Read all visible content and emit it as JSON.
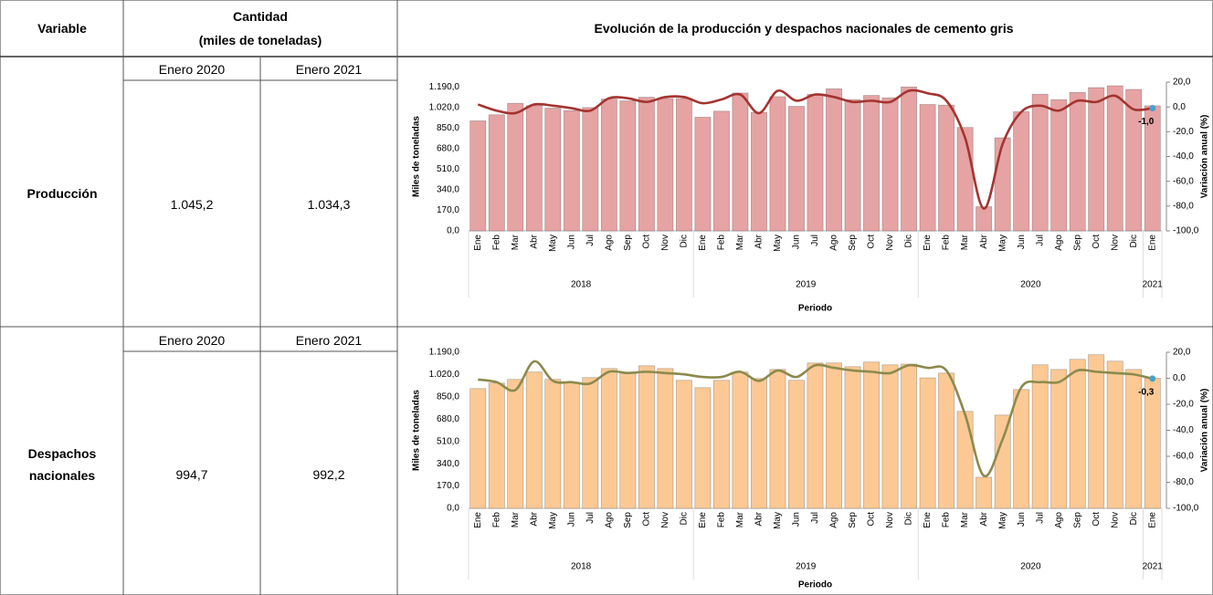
{
  "table": {
    "headers": {
      "variable": "Variable",
      "cantidad": "Cantidad",
      "unit": "(miles de toneladas)",
      "chart": "Evolución de la producción y despachos nacionales de cemento gris"
    },
    "rows": [
      {
        "variable": "Producción",
        "periods": [
          "Enero 2020",
          "Enero 2021"
        ],
        "values": [
          "1.045,2",
          "1.034,3"
        ]
      },
      {
        "variable": "Despachos nacionales",
        "periods": [
          "Enero 2020",
          "Enero 2021"
        ],
        "values": [
          "994,7",
          "992,2"
        ]
      }
    ]
  },
  "chart_data": [
    {
      "type": "bar",
      "categories": [
        "Ene",
        "Feb",
        "Mar",
        "Abr",
        "May",
        "Jun",
        "Jul",
        "Ago",
        "Sep",
        "Oct",
        "Nov",
        "Dic",
        "Ene",
        "Feb",
        "Mar",
        "Abr",
        "May",
        "Jun",
        "Jul",
        "Ago",
        "Sep",
        "Oct",
        "Nov",
        "Dic",
        "Ene",
        "Feb",
        "Mar",
        "Abr",
        "May",
        "Jun",
        "Jul",
        "Ago",
        "Sep",
        "Oct",
        "Nov",
        "Dic",
        "Ene"
      ],
      "year_labels": [
        "2018",
        "2019",
        "2020",
        "2021"
      ],
      "x_label": "Periodo",
      "y_label": "Miles de toneladas",
      "y2_label": "Variación anual (%)",
      "ylim": [
        0,
        1230
      ],
      "yticks": [
        {
          "value": 0,
          "label": "0,0"
        },
        {
          "value": 170,
          "label": "170,0"
        },
        {
          "value": 340,
          "label": "340,0"
        },
        {
          "value": 510,
          "label": "510,0"
        },
        {
          "value": 680,
          "label": "680,0"
        },
        {
          "value": 850,
          "label": "850,0"
        },
        {
          "value": 1020,
          "label": "1.020,0"
        },
        {
          "value": 1190,
          "label": "1.190,0"
        }
      ],
      "y2lim": [
        -100,
        20
      ],
      "y2ticks": [
        {
          "value": -100,
          "label": "-100,0"
        },
        {
          "value": -80,
          "label": "-80,0"
        },
        {
          "value": -60,
          "label": "-60,0"
        },
        {
          "value": -40,
          "label": "-40,0"
        },
        {
          "value": -20,
          "label": "-20,0"
        },
        {
          "value": 0,
          "label": "0,0"
        },
        {
          "value": 20,
          "label": "20,0"
        }
      ],
      "series": [
        {
          "type": "bar",
          "color": "#e6a3a3",
          "values": [
            910,
            960,
            1055,
            1035,
            1015,
            995,
            1020,
            1090,
            1075,
            1105,
            1095,
            1095,
            940,
            990,
            1140,
            980,
            1110,
            1030,
            1130,
            1175,
            1085,
            1120,
            1100,
            1190,
            1045.2,
            1040,
            855,
            200,
            770,
            985,
            1130,
            1085,
            1145,
            1185,
            1200,
            1170,
            1034.3
          ]
        },
        {
          "type": "line",
          "axis": "y2",
          "color": "#a33431",
          "marker_color": "#4a9fc9",
          "values": [
            2,
            -3,
            -5,
            2,
            1,
            -1,
            -3,
            7,
            7,
            4,
            8,
            8,
            3,
            6,
            10,
            -5,
            13,
            5,
            10,
            8,
            4,
            5,
            4,
            13,
            11,
            5,
            -25,
            -82,
            -30,
            -4,
            1,
            -3,
            5,
            4,
            9,
            -2,
            -1.0
          ],
          "value_labels": [
            null,
            null,
            null,
            null,
            null,
            null,
            null,
            null,
            null,
            null,
            null,
            null,
            null,
            null,
            null,
            null,
            null,
            null,
            null,
            null,
            null,
            null,
            null,
            null,
            null,
            null,
            null,
            null,
            null,
            null,
            null,
            null,
            null,
            null,
            null,
            null,
            "-1,0"
          ]
        }
      ]
    },
    {
      "type": "bar",
      "categories": [
        "Ene",
        "Feb",
        "Mar",
        "Abr",
        "May",
        "Jun",
        "Jul",
        "Ago",
        "Sep",
        "Oct",
        "Nov",
        "Dic",
        "Ene",
        "Feb",
        "Mar",
        "Abr",
        "May",
        "Jun",
        "Jul",
        "Ago",
        "Sep",
        "Oct",
        "Nov",
        "Dic",
        "Ene",
        "Feb",
        "Mar",
        "Abr",
        "May",
        "Jun",
        "Jul",
        "Ago",
        "Sep",
        "Oct",
        "Nov",
        "Dic",
        "Ene"
      ],
      "year_labels": [
        "2018",
        "2019",
        "2020",
        "2021"
      ],
      "x_label": "Periodo",
      "y_label": "Miles de toneladas",
      "y2_label": "Variación anual (%)",
      "ylim": [
        0,
        1190
      ],
      "yticks": [
        {
          "value": 0,
          "label": "0,0"
        },
        {
          "value": 170,
          "label": "170,0"
        },
        {
          "value": 340,
          "label": "340,0"
        },
        {
          "value": 510,
          "label": "510,0"
        },
        {
          "value": 680,
          "label": "680,0"
        },
        {
          "value": 850,
          "label": "850,0"
        },
        {
          "value": 1020,
          "label": "1.020,0"
        },
        {
          "value": 1190,
          "label": "1.190,0"
        }
      ],
      "y2lim": [
        -100,
        20
      ],
      "y2ticks": [
        {
          "value": -100,
          "label": "-100,0"
        },
        {
          "value": -80,
          "label": "-80,0"
        },
        {
          "value": -60,
          "label": "-60,0"
        },
        {
          "value": -40,
          "label": "-40,0"
        },
        {
          "value": -20,
          "label": "-20,0"
        },
        {
          "value": 0,
          "label": "0,0"
        },
        {
          "value": 20,
          "label": "20,0"
        }
      ],
      "series": [
        {
          "type": "bar",
          "color": "#fcc995",
          "values": [
            913,
            955,
            983,
            1039,
            983,
            962,
            997,
            1066,
            1039,
            1087,
            1066,
            976,
            920,
            976,
            1039,
            990,
            1059,
            976,
            1108,
            1108,
            1080,
            1115,
            1094,
            1100,
            994.7,
            1031,
            739,
            237,
            711,
            906,
            1094,
            1059,
            1136,
            1171,
            1122,
            1059,
            992.2
          ]
        },
        {
          "type": "line",
          "axis": "y2",
          "color": "#8c8a4c",
          "marker_color": "#4a9fc9",
          "values": [
            -1,
            -3,
            -9,
            13,
            -2,
            -3,
            -4,
            5,
            4,
            5,
            4,
            3,
            1,
            1,
            5,
            -2,
            6,
            1,
            10,
            8,
            6,
            5,
            4,
            10,
            8,
            6,
            -28,
            -75,
            -47,
            -7,
            -3,
            -3,
            6,
            5,
            4,
            3,
            -0.3
          ],
          "value_labels": [
            null,
            null,
            null,
            null,
            null,
            null,
            null,
            null,
            null,
            null,
            null,
            null,
            null,
            null,
            null,
            null,
            null,
            null,
            null,
            null,
            null,
            null,
            null,
            null,
            null,
            null,
            null,
            null,
            null,
            null,
            null,
            null,
            null,
            null,
            null,
            null,
            "-0,3"
          ]
        }
      ]
    }
  ]
}
